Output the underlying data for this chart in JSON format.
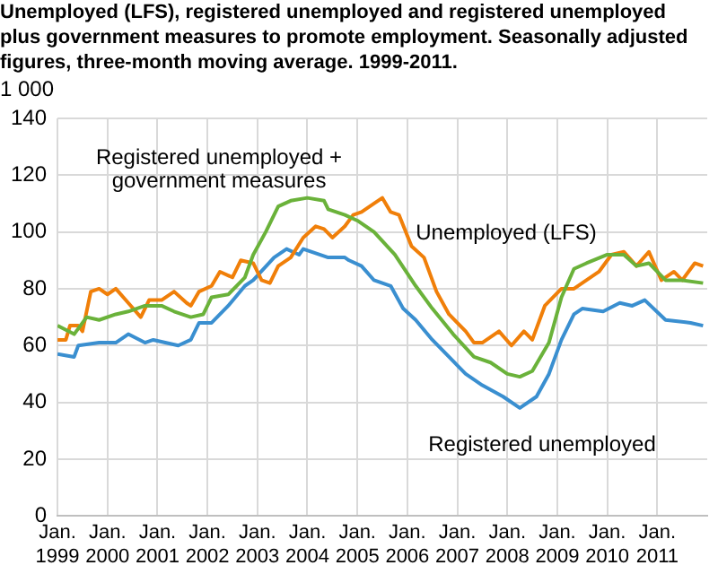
{
  "chart_data": {
    "type": "line",
    "title": "Unemployed (LFS), registered unemployed and registered unemployed plus government measures to promote employment. Seasonally adjusted figures, three-month moving average. 1999-2011.",
    "ylabel": "1 000",
    "xlim": [
      "1999-01",
      "2011-12"
    ],
    "xticks": [
      {
        "value": "1999-01",
        "label": "Jan.\n1999"
      },
      {
        "value": "2000-01",
        "label": "Jan.\n2000"
      },
      {
        "value": "2001-01",
        "label": "Jan.\n2001"
      },
      {
        "value": "2002-01",
        "label": "Jan.\n2002"
      },
      {
        "value": "2003-01",
        "label": "Jan.\n2003"
      },
      {
        "value": "2004-01",
        "label": "Jan.\n2004"
      },
      {
        "value": "2005-01",
        "label": "Jan.\n2005"
      },
      {
        "value": "2006-01",
        "label": "Jan.\n2006"
      },
      {
        "value": "2007-01",
        "label": "Jan.\n2007"
      },
      {
        "value": "2008-01",
        "label": "Jan.\n2008"
      },
      {
        "value": "2009-01",
        "label": "Jan.\n2009"
      },
      {
        "value": "2010-01",
        "label": "Jan.\n2010"
      },
      {
        "value": "2011-01",
        "label": "Jan.\n2011"
      }
    ],
    "ylim": [
      0,
      140
    ],
    "yticks": [
      0,
      20,
      40,
      60,
      80,
      100,
      120,
      140
    ],
    "grid": true,
    "legend": false,
    "marker": "none",
    "line_style": "solid",
    "series": [
      {
        "name": "Registered unemployed + government measures",
        "color": "#6ab23a",
        "x": [
          "1999-01",
          "1999-05",
          "1999-08",
          "1999-11",
          "2000-03",
          "2000-06",
          "2000-10",
          "2001-02",
          "2001-05",
          "2001-09",
          "2001-12",
          "2002-02",
          "2002-06",
          "2002-10",
          "2002-12",
          "2003-03",
          "2003-06",
          "2003-09",
          "2004-01",
          "2004-05",
          "2004-06",
          "2004-10",
          "2005-01",
          "2005-05",
          "2005-10",
          "2006-03",
          "2006-07",
          "2006-12",
          "2007-05",
          "2007-09",
          "2008-01",
          "2008-04",
          "2008-07",
          "2008-11",
          "2009-02",
          "2009-05",
          "2009-08",
          "2010-01",
          "2010-05",
          "2010-08",
          "2010-11",
          "2011-03",
          "2011-07",
          "2011-12"
        ],
        "values": [
          67,
          64,
          70,
          69,
          71,
          72,
          74,
          74,
          72,
          70,
          71,
          77,
          78,
          84,
          92,
          100,
          109,
          111,
          112,
          111,
          108,
          106,
          104,
          100,
          92,
          81,
          73,
          64,
          56,
          54,
          50,
          49,
          51,
          61,
          77,
          87,
          89,
          92,
          92,
          88,
          89,
          83,
          83,
          82
        ]
      },
      {
        "name": "Unemployed (LFS)",
        "color": "#f07f09",
        "x": [
          "1999-01",
          "1999-03",
          "1999-04",
          "1999-06",
          "1999-07",
          "1999-09",
          "1999-11",
          "2000-01",
          "2000-03",
          "2000-06",
          "2000-09",
          "2000-11",
          "2001-02",
          "2001-05",
          "2001-08",
          "2001-09",
          "2001-11",
          "2002-02",
          "2002-04",
          "2002-07",
          "2002-09",
          "2002-12",
          "2003-02",
          "2003-04",
          "2003-06",
          "2003-09",
          "2003-12",
          "2004-03",
          "2004-05",
          "2004-07",
          "2004-10",
          "2004-12",
          "2005-02",
          "2005-05",
          "2005-07",
          "2005-09",
          "2005-11",
          "2006-02",
          "2006-05",
          "2006-08",
          "2006-11",
          "2007-03",
          "2007-05",
          "2007-07",
          "2007-11",
          "2008-02",
          "2008-05",
          "2008-07",
          "2008-10",
          "2009-02",
          "2009-05",
          "2009-08",
          "2009-11",
          "2010-02",
          "2010-05",
          "2010-08",
          "2010-11",
          "2011-02",
          "2011-05",
          "2011-07",
          "2011-10",
          "2011-12"
        ],
        "values": [
          62,
          62,
          67,
          67,
          65,
          79,
          80,
          78,
          80,
          75,
          70,
          76,
          76,
          79,
          75,
          74,
          79,
          81,
          86,
          84,
          90,
          89,
          83,
          82,
          88,
          91,
          98,
          102,
          101,
          98,
          102,
          106,
          107,
          110,
          112,
          107,
          106,
          95,
          91,
          79,
          71,
          65,
          61,
          61,
          65,
          60,
          65,
          62,
          74,
          80,
          80,
          83,
          86,
          92,
          93,
          88,
          93,
          83,
          86,
          83,
          89,
          88
        ]
      },
      {
        "name": "Registered unemployed",
        "color": "#3a8fd0",
        "x": [
          "1999-01",
          "1999-05",
          "1999-06",
          "1999-11",
          "2000-03",
          "2000-06",
          "2000-10",
          "2000-12",
          "2001-06",
          "2001-09",
          "2001-11",
          "2002-02",
          "2002-06",
          "2002-10",
          "2002-12",
          "2003-05",
          "2003-08",
          "2003-11",
          "2003-12",
          "2004-06",
          "2004-10",
          "2004-11",
          "2005-02",
          "2005-05",
          "2005-09",
          "2005-12",
          "2006-03",
          "2006-07",
          "2006-11",
          "2007-03",
          "2007-07",
          "2007-12",
          "2008-04",
          "2008-08",
          "2008-11",
          "2009-02",
          "2009-05",
          "2009-07",
          "2009-12",
          "2010-04",
          "2010-07",
          "2010-10",
          "2011-03",
          "2011-09",
          "2011-12"
        ],
        "values": [
          57,
          56,
          60,
          61,
          61,
          64,
          61,
          62,
          60,
          62,
          68,
          68,
          74,
          81,
          83,
          91,
          94,
          92,
          94,
          91,
          91,
          90,
          88,
          83,
          81,
          73,
          69,
          62,
          56,
          50,
          46,
          42,
          38,
          42,
          50,
          62,
          71,
          73,
          72,
          75,
          74,
          76,
          69,
          68,
          67
        ]
      }
    ]
  }
}
